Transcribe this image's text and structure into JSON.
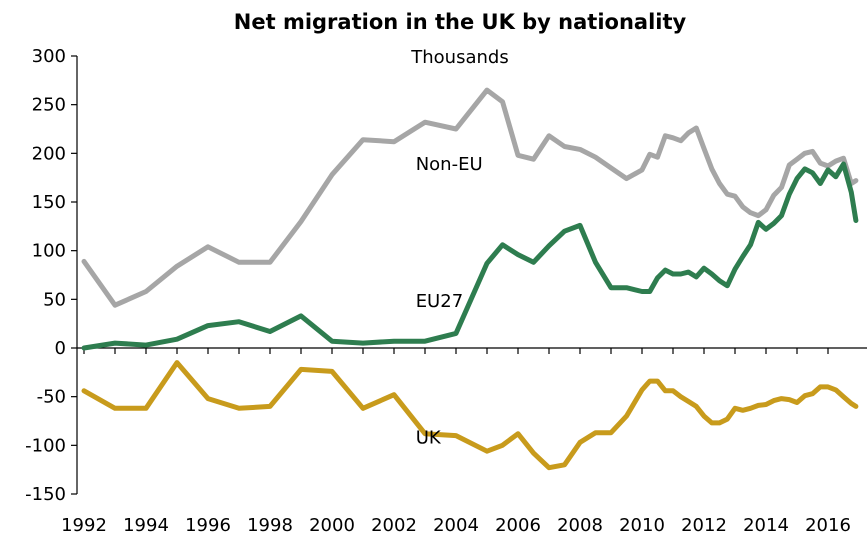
{
  "chart_data": {
    "type": "line",
    "title": "Net migration in the UK by nationality",
    "subtitle": "Thousands",
    "xlabel": "",
    "ylabel": "",
    "xlim": [
      1992,
      2016.9
    ],
    "ylim": [
      -150,
      300
    ],
    "yticks": [
      300,
      250,
      200,
      150,
      100,
      50,
      0,
      -50,
      -100,
      -150
    ],
    "xticks": [
      1992,
      1994,
      1996,
      1998,
      2000,
      2002,
      2004,
      2006,
      2008,
      2010,
      2012,
      2014,
      2016
    ],
    "grid": false,
    "legend": "none",
    "series": [
      {
        "name": "Non-EU",
        "color": "#a6a6a6",
        "points": [
          [
            1992,
            89
          ],
          [
            1993,
            44
          ],
          [
            1994,
            58
          ],
          [
            1995,
            84
          ],
          [
            1996,
            104
          ],
          [
            1997,
            88
          ],
          [
            1998,
            88
          ],
          [
            1999,
            130
          ],
          [
            2000,
            178
          ],
          [
            2001,
            214
          ],
          [
            2002,
            212
          ],
          [
            2003,
            232
          ],
          [
            2004,
            225
          ],
          [
            2005,
            265
          ],
          [
            2005.5,
            253
          ],
          [
            2006,
            198
          ],
          [
            2006.5,
            194
          ],
          [
            2007,
            218
          ],
          [
            2007.5,
            207
          ],
          [
            2008,
            204
          ],
          [
            2008.5,
            196
          ],
          [
            2009,
            185
          ],
          [
            2009.5,
            174
          ],
          [
            2010,
            183
          ],
          [
            2010.25,
            199
          ],
          [
            2010.5,
            196
          ],
          [
            2010.75,
            218
          ],
          [
            2011,
            216
          ],
          [
            2011.25,
            213
          ],
          [
            2011.5,
            221
          ],
          [
            2011.75,
            226
          ],
          [
            2012,
            205
          ],
          [
            2012.25,
            184
          ],
          [
            2012.5,
            169
          ],
          [
            2012.75,
            158
          ],
          [
            2013,
            156
          ],
          [
            2013.25,
            145
          ],
          [
            2013.5,
            139
          ],
          [
            2013.75,
            136
          ],
          [
            2014,
            142
          ],
          [
            2014.25,
            157
          ],
          [
            2014.5,
            165
          ],
          [
            2014.75,
            188
          ],
          [
            2015,
            194
          ],
          [
            2015.25,
            200
          ],
          [
            2015.5,
            202
          ],
          [
            2015.75,
            190
          ],
          [
            2016,
            187
          ],
          [
            2016.25,
            192
          ],
          [
            2016.5,
            195
          ],
          [
            2016.75,
            169
          ],
          [
            2016.9,
            172
          ]
        ]
      },
      {
        "name": "EU27",
        "color": "#2e7d4f",
        "points": [
          [
            1992,
            0
          ],
          [
            1993,
            5
          ],
          [
            1994,
            3
          ],
          [
            1995,
            9
          ],
          [
            1996,
            23
          ],
          [
            1997,
            27
          ],
          [
            1998,
            17
          ],
          [
            1999,
            33
          ],
          [
            2000,
            7
          ],
          [
            2001,
            5
          ],
          [
            2002,
            7
          ],
          [
            2003,
            7
          ],
          [
            2004,
            15
          ],
          [
            2005,
            87
          ],
          [
            2005.5,
            106
          ],
          [
            2006,
            96
          ],
          [
            2006.5,
            88
          ],
          [
            2007,
            105
          ],
          [
            2007.5,
            120
          ],
          [
            2008,
            126
          ],
          [
            2008.5,
            88
          ],
          [
            2009,
            62
          ],
          [
            2009.5,
            62
          ],
          [
            2010,
            58
          ],
          [
            2010.25,
            58
          ],
          [
            2010.5,
            72
          ],
          [
            2010.75,
            80
          ],
          [
            2011,
            76
          ],
          [
            2011.25,
            76
          ],
          [
            2011.5,
            78
          ],
          [
            2011.75,
            73
          ],
          [
            2012,
            82
          ],
          [
            2012.25,
            76
          ],
          [
            2012.5,
            69
          ],
          [
            2012.75,
            64
          ],
          [
            2013,
            81
          ],
          [
            2013.25,
            94
          ],
          [
            2013.5,
            106
          ],
          [
            2013.75,
            129
          ],
          [
            2014,
            122
          ],
          [
            2014.25,
            128
          ],
          [
            2014.5,
            136
          ],
          [
            2014.75,
            158
          ],
          [
            2015,
            174
          ],
          [
            2015.25,
            184
          ],
          [
            2015.5,
            180
          ],
          [
            2015.75,
            169
          ],
          [
            2016,
            183
          ],
          [
            2016.25,
            176
          ],
          [
            2016.5,
            189
          ],
          [
            2016.75,
            160
          ],
          [
            2016.9,
            131
          ]
        ]
      },
      {
        "name": "UK",
        "color": "#c89b1c",
        "points": [
          [
            1992,
            -44
          ],
          [
            1993,
            -62
          ],
          [
            1994,
            -62
          ],
          [
            1995,
            -15
          ],
          [
            1996,
            -52
          ],
          [
            1997,
            -62
          ],
          [
            1998,
            -60
          ],
          [
            1999,
            -22
          ],
          [
            2000,
            -24
          ],
          [
            2001,
            -62
          ],
          [
            2002,
            -48
          ],
          [
            2003,
            -88
          ],
          [
            2004,
            -90
          ],
          [
            2005,
            -106
          ],
          [
            2005.5,
            -100
          ],
          [
            2006,
            -88
          ],
          [
            2006.5,
            -108
          ],
          [
            2007,
            -123
          ],
          [
            2007.5,
            -120
          ],
          [
            2008,
            -97
          ],
          [
            2008.5,
            -87
          ],
          [
            2009,
            -87
          ],
          [
            2009.5,
            -70
          ],
          [
            2010,
            -43
          ],
          [
            2010.25,
            -34
          ],
          [
            2010.5,
            -34
          ],
          [
            2010.75,
            -44
          ],
          [
            2011,
            -44
          ],
          [
            2011.25,
            -50
          ],
          [
            2011.5,
            -55
          ],
          [
            2011.75,
            -60
          ],
          [
            2012,
            -70
          ],
          [
            2012.25,
            -77
          ],
          [
            2012.5,
            -77
          ],
          [
            2012.75,
            -73
          ],
          [
            2013,
            -62
          ],
          [
            2013.25,
            -64
          ],
          [
            2013.5,
            -62
          ],
          [
            2013.75,
            -59
          ],
          [
            2014,
            -58
          ],
          [
            2014.25,
            -54
          ],
          [
            2014.5,
            -52
          ],
          [
            2014.75,
            -53
          ],
          [
            2015,
            -56
          ],
          [
            2015.25,
            -49
          ],
          [
            2015.5,
            -47
          ],
          [
            2015.75,
            -40
          ],
          [
            2016,
            -40
          ],
          [
            2016.25,
            -43
          ],
          [
            2016.5,
            -50
          ],
          [
            2016.75,
            -57
          ],
          [
            2016.9,
            -60
          ]
        ]
      }
    ],
    "annotations": [
      {
        "text": "Non-EU",
        "x": 2002.7,
        "y": 183
      },
      {
        "text": "EU27",
        "x": 2002.7,
        "y": 42
      },
      {
        "text": "UK",
        "x": 2002.7,
        "y": -98
      }
    ]
  }
}
